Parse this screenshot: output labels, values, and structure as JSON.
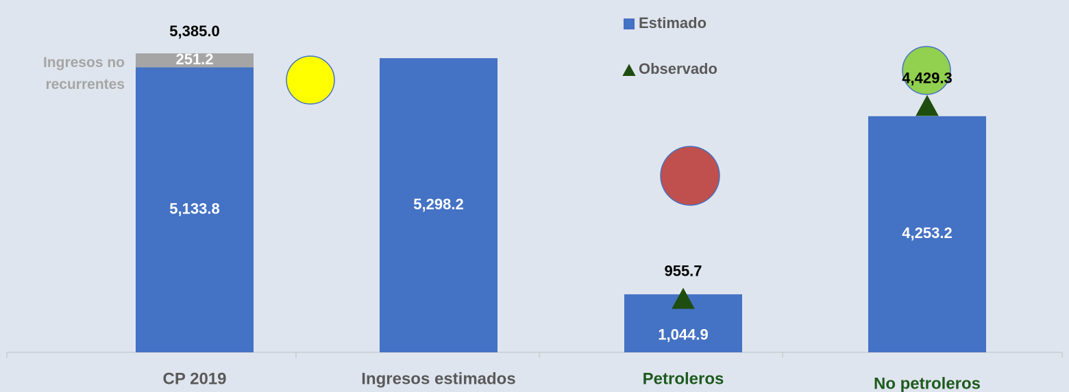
{
  "chart_data": {
    "type": "bar",
    "stacked": true,
    "categories": [
      "CP 2019",
      "Ingresos estimados",
      "Petroleros",
      "No petroleros"
    ],
    "category_colors": [
      "#595959",
      "#595959",
      "#1e5a1e",
      "#1e5a1e"
    ],
    "series": [
      {
        "name": "Estimado",
        "color": "#4472c4",
        "values": [
          5133.8,
          5298.2,
          1044.9,
          4253.2
        ],
        "value_labels": [
          "5,133.8",
          "5,298.2",
          "1,044.9",
          "4,253.2"
        ]
      },
      {
        "name": "Ingresos no recurrentes",
        "color": "#a5a5a5",
        "inline_name": true,
        "values": [
          251.2,
          null,
          null,
          null
        ],
        "value_labels": [
          "251.2",
          null,
          null,
          null
        ]
      },
      {
        "name": "Observado",
        "type": "marker",
        "color": "#1e4d0f",
        "values": [
          null,
          null,
          955.7,
          4429.3
        ],
        "value_labels": [
          null,
          null,
          "955.7",
          "4,429.3"
        ]
      }
    ],
    "totals": [
      5385,
      null,
      null,
      null
    ],
    "total_labels": [
      "5,385.0",
      null,
      null,
      null
    ]
  }
}
